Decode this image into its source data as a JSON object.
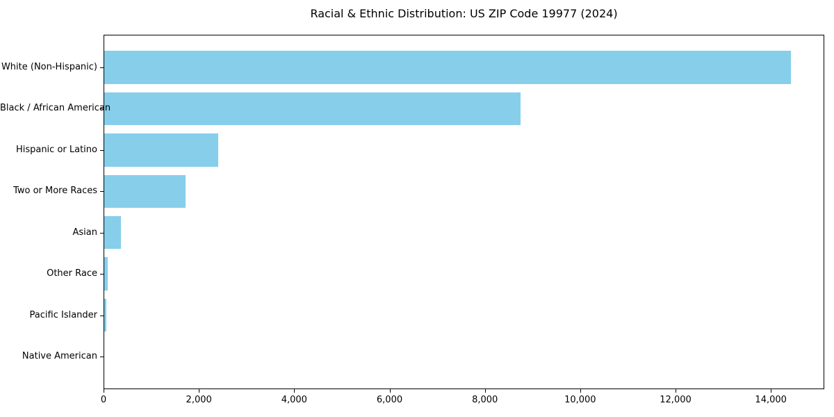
{
  "chart_data": {
    "type": "bar",
    "orientation": "horizontal",
    "title": "Racial & Ethnic Distribution: US ZIP Code 19977 (2024)",
    "categories": [
      "White (Non-Hispanic)",
      "Black / African American",
      "Hispanic or Latino",
      "Two or More Races",
      "Asian",
      "Other Race",
      "Pacific Islander",
      "Native American"
    ],
    "values": [
      14400,
      8740,
      2390,
      1710,
      350,
      80,
      40,
      0
    ],
    "xlabel": "",
    "ylabel": "",
    "xlim": [
      0,
      15120
    ],
    "x_ticks": [
      0,
      2000,
      4000,
      6000,
      8000,
      10000,
      12000,
      14000
    ],
    "x_tick_labels": [
      "0",
      "2,000",
      "4,000",
      "6,000",
      "8,000",
      "10,000",
      "12,000",
      "14,000"
    ],
    "bar_color": "#87CEEB",
    "background_color": "#ffffff",
    "grid": false,
    "legend": null
  }
}
